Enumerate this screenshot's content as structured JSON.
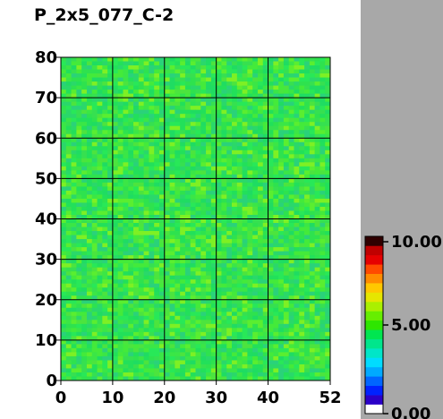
{
  "chart_data": {
    "type": "heatmap",
    "title": "P_2x5_077_C-2",
    "xlim": [
      0,
      52
    ],
    "ylim": [
      0,
      80
    ],
    "x_ticks": [
      "0",
      "10",
      "20",
      "30",
      "40",
      "52"
    ],
    "y_ticks": [
      "0",
      "10",
      "20",
      "30",
      "40",
      "50",
      "60",
      "70",
      "80"
    ],
    "grid": true,
    "value_range": [
      0.0,
      10.0
    ],
    "typical_value": 5.0,
    "colorbar": {
      "labels": [
        "10.00",
        "5.00",
        "0.00"
      ],
      "colors": [
        "#ffffff",
        "#2b00c8",
        "#0022ff",
        "#0066ff",
        "#00aaff",
        "#00dcff",
        "#00e6c8",
        "#00e68c",
        "#00e650",
        "#2ee600",
        "#66ee00",
        "#aaf000",
        "#e6e600",
        "#ffc800",
        "#ff8c00",
        "#ff4a00",
        "#e60000",
        "#c00000",
        "#300000"
      ]
    }
  }
}
